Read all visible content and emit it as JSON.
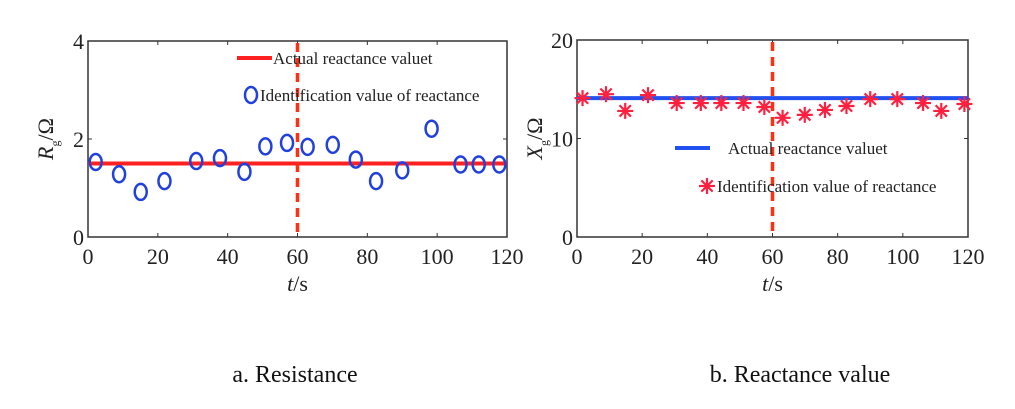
{
  "chart_data": [
    {
      "type": "scatter",
      "caption": "a. Resistance",
      "xlabel": "t/s",
      "ylabel": "Rg/Ω",
      "ylabel_main": "R",
      "ylabel_sub": "g",
      "ylabel_unit": "/Ω",
      "xlim": [
        0,
        120
      ],
      "ylim": [
        0,
        4
      ],
      "xticks": [
        "0",
        "20",
        "40",
        "60",
        "80",
        "100",
        "120"
      ],
      "yticks": [
        "0",
        "2",
        "4"
      ],
      "grid": false,
      "vline_x": 60,
      "legend_position": "top-right",
      "series": [
        {
          "name": "Actual reactance valuet",
          "kind": "line",
          "color": "#ff2020",
          "y": 1.5
        },
        {
          "name": "Identification value of reactance",
          "kind": "scatter",
          "marker": "circle",
          "color": "#2040e0",
          "x": [
            2.2,
            8.9,
            15.1,
            21.9,
            31.0,
            37.8,
            44.8,
            50.8,
            57.0,
            62.9,
            70.1,
            76.7,
            82.5,
            90.0,
            98.4,
            106.7,
            111.9,
            117.8
          ],
          "y": [
            1.53,
            1.28,
            0.92,
            1.14,
            1.55,
            1.61,
            1.33,
            1.85,
            1.92,
            1.84,
            1.88,
            1.58,
            1.14,
            1.36,
            2.21,
            1.48,
            1.48,
            1.48
          ]
        }
      ]
    },
    {
      "type": "scatter",
      "caption": "b. Reactance value",
      "xlabel": "t/s",
      "ylabel": "Xg/Ω",
      "ylabel_main": "X",
      "ylabel_sub": "g",
      "ylabel_unit": "/Ω",
      "xlim": [
        0,
        120
      ],
      "ylim": [
        0,
        20
      ],
      "xticks": [
        "0",
        "20",
        "40",
        "60",
        "80",
        "100",
        "120"
      ],
      "yticks": [
        "0",
        "10",
        "20"
      ],
      "grid": false,
      "vline_x": 60,
      "legend_position": "center-right",
      "series": [
        {
          "name": "Actual reactance valuet",
          "kind": "line",
          "color": "#2050f0",
          "y": 14.1
        },
        {
          "name": "Identification value of reactance",
          "kind": "scatter",
          "marker": "asterisk",
          "color": "#ff2040",
          "x": [
            1.7,
            8.9,
            14.8,
            21.8,
            30.6,
            38.0,
            44.3,
            51.1,
            57.5,
            63.1,
            69.9,
            76.1,
            82.7,
            90.0,
            98.3,
            106.2,
            111.8,
            118.9
          ],
          "y": [
            14.1,
            14.5,
            12.8,
            14.4,
            13.6,
            13.6,
            13.6,
            13.6,
            13.2,
            12.1,
            12.4,
            12.9,
            13.3,
            14.0,
            14.0,
            13.6,
            12.8,
            13.5
          ]
        }
      ]
    }
  ]
}
